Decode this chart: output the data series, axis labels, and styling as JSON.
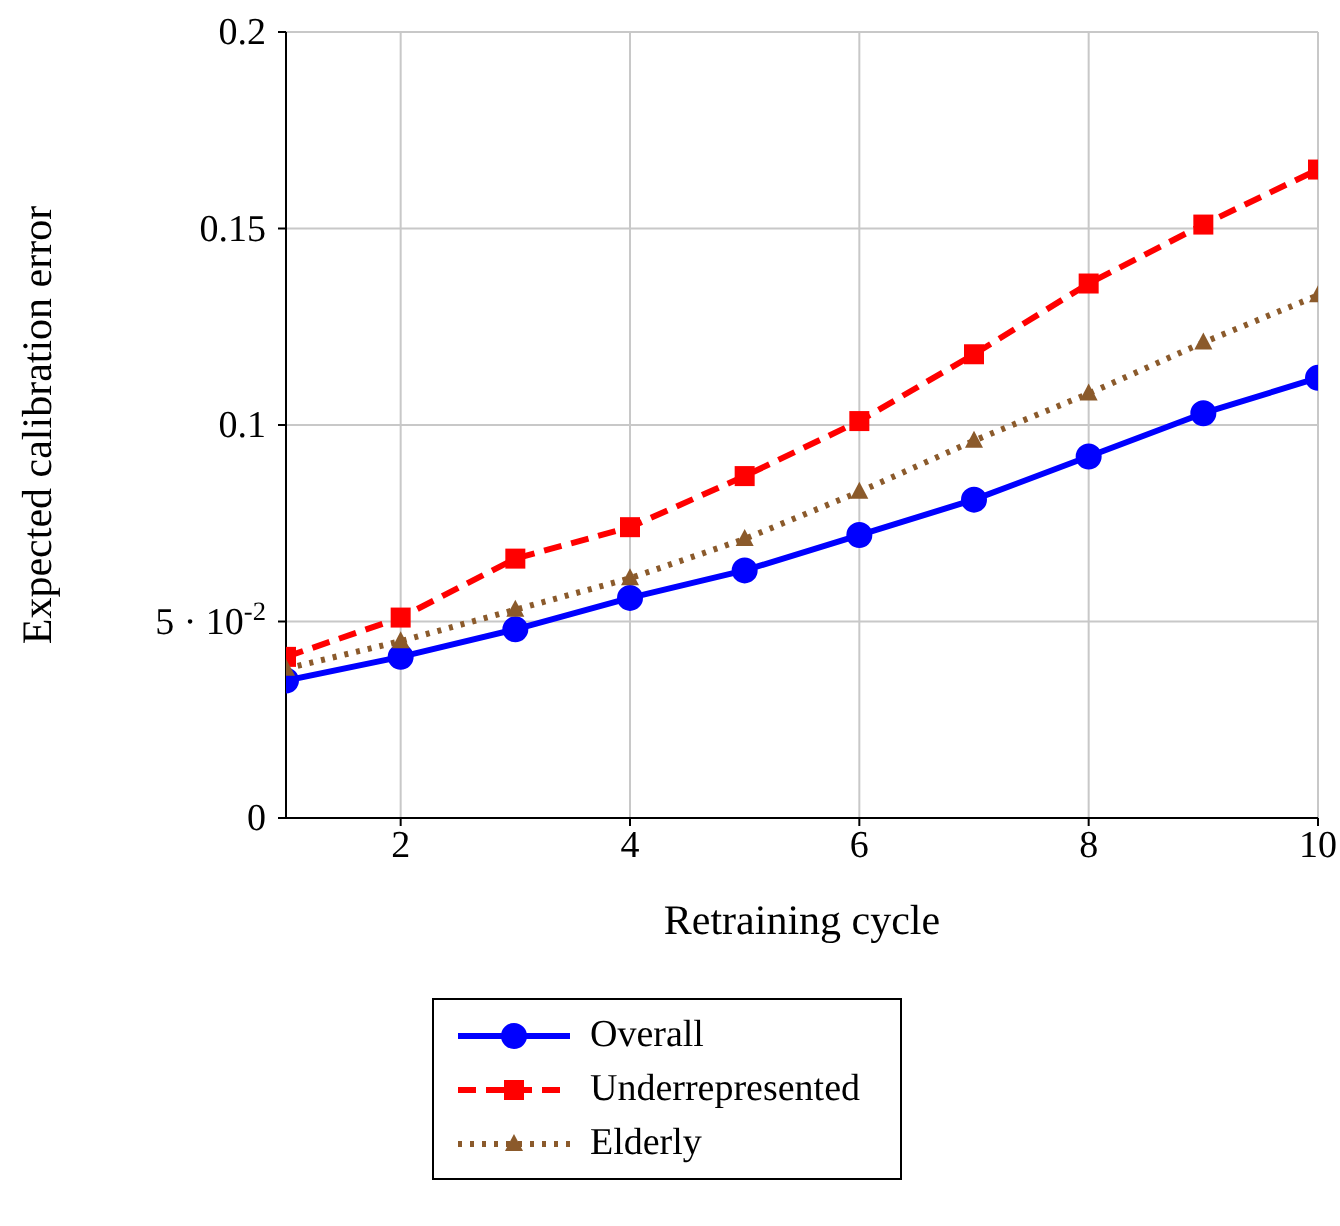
{
  "chart_data": {
    "type": "line",
    "xlabel": "Retraining cycle",
    "ylabel": "Expected calibration error",
    "x": [
      1,
      2,
      3,
      4,
      5,
      6,
      7,
      8,
      9,
      10
    ],
    "series": [
      {
        "name": "Overall",
        "color": "#0000ff",
        "marker": "circle",
        "line_style": "solid",
        "values": [
          0.035,
          0.041,
          0.048,
          0.056,
          0.063,
          0.072,
          0.081,
          0.092,
          0.103,
          0.112
        ]
      },
      {
        "name": "Underrepresented",
        "color": "#ff0000",
        "marker": "square",
        "line_style": "dashed",
        "values": [
          0.041,
          0.051,
          0.066,
          0.074,
          0.087,
          0.101,
          0.118,
          0.136,
          0.151,
          0.165
        ]
      },
      {
        "name": "Elderly",
        "color": "#8b5a2b",
        "marker": "triangle",
        "line_style": "dotted",
        "values": [
          0.038,
          0.045,
          0.053,
          0.061,
          0.071,
          0.083,
          0.096,
          0.108,
          0.121,
          0.133
        ]
      }
    ],
    "xlim": [
      1,
      10
    ],
    "xticks": [
      2,
      4,
      6,
      8,
      10
    ],
    "ylim": [
      0,
      0.2
    ],
    "yticks": [
      0,
      {
        "value": 0.05,
        "label": "5 · 10$^{-2}$"
      },
      0.1,
      0.15,
      0.2
    ],
    "grid": true,
    "legend": "bottom"
  }
}
